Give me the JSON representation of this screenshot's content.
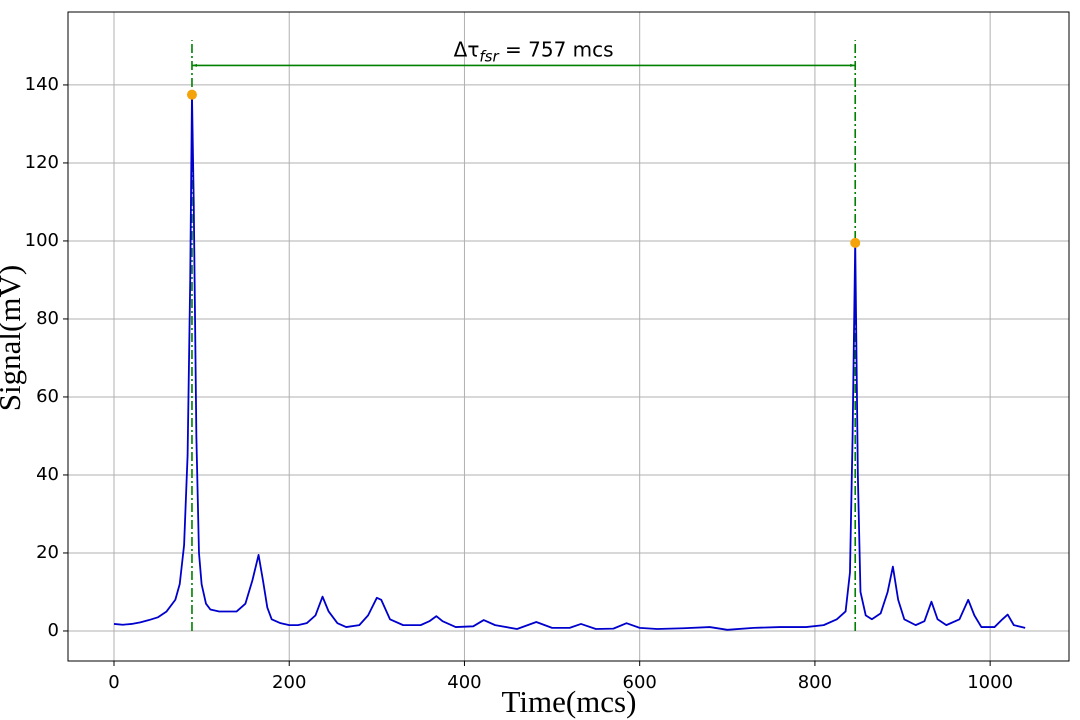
{
  "chart_data": {
    "type": "line",
    "xlabel": "Time(mcs)",
    "ylabel": "Signal(mV)",
    "x": [
      0,
      10,
      20,
      30,
      40,
      50,
      60,
      70,
      75,
      80,
      84,
      87,
      89,
      91,
      94,
      97,
      100,
      105,
      110,
      120,
      130,
      140,
      150,
      158,
      165,
      170,
      175,
      180,
      190,
      200,
      210,
      220,
      230,
      238,
      245,
      255,
      265,
      280,
      290,
      300,
      305,
      315,
      330,
      350,
      360,
      368,
      375,
      390,
      410,
      422,
      435,
      460,
      482,
      500,
      520,
      533,
      550,
      570,
      585,
      600,
      620,
      650,
      680,
      700,
      730,
      760,
      790,
      810,
      825,
      835,
      840,
      843,
      846,
      849,
      852,
      858,
      865,
      875,
      883,
      889,
      895,
      902,
      915,
      925,
      933,
      940,
      950,
      965,
      975,
      982,
      990,
      1005,
      1014,
      1020,
      1027,
      1040
    ],
    "series": [
      {
        "name": "Signal",
        "color": "#0000cd",
        "values": [
          1.8,
          1.6,
          1.8,
          2.2,
          2.8,
          3.5,
          5,
          8,
          12,
          22,
          45,
          90,
          137.5,
          110,
          50,
          20,
          12,
          7,
          5.5,
          5,
          5,
          5,
          7,
          13,
          19.5,
          13,
          6,
          3,
          2,
          1.5,
          1.5,
          2,
          4,
          8.8,
          5,
          2,
          1,
          1.5,
          4,
          8.5,
          8,
          3,
          1.5,
          1.5,
          2.5,
          3.8,
          2.5,
          1,
          1.2,
          2.8,
          1.5,
          0.5,
          2.3,
          0.8,
          0.8,
          1.8,
          0.5,
          0.6,
          2,
          0.8,
          0.5,
          0.7,
          1,
          0.3,
          0.8,
          1,
          1,
          1.5,
          3,
          5,
          15,
          50,
          99.5,
          40,
          10,
          4,
          3,
          4.5,
          10,
          16.5,
          8,
          3,
          1.5,
          2.5,
          7.5,
          3,
          1.5,
          3,
          8,
          4,
          1,
          1,
          3,
          4.2,
          1.5,
          0.8
        ]
      }
    ],
    "peaks": {
      "x": [
        89,
        846
      ],
      "y": [
        137.5,
        99.5
      ],
      "color": "#f5a30a"
    },
    "vlines": {
      "x": [
        89,
        846
      ],
      "ymax": 151.5,
      "color": "#008000"
    },
    "arrow": {
      "x": [
        89,
        846
      ],
      "y": 145,
      "color": "#008000"
    },
    "annotation": {
      "symbol": "Δτ",
      "sub": "fsr",
      "rest": " = 757 mcs"
    },
    "xlim": [
      -52.5,
      1090
    ],
    "ylim": [
      -7.7,
      158.7
    ],
    "xticks": [
      0,
      200,
      400,
      600,
      800,
      1000
    ],
    "yticks": [
      0,
      20,
      40,
      60,
      80,
      100,
      120,
      140
    ],
    "grid": true
  }
}
